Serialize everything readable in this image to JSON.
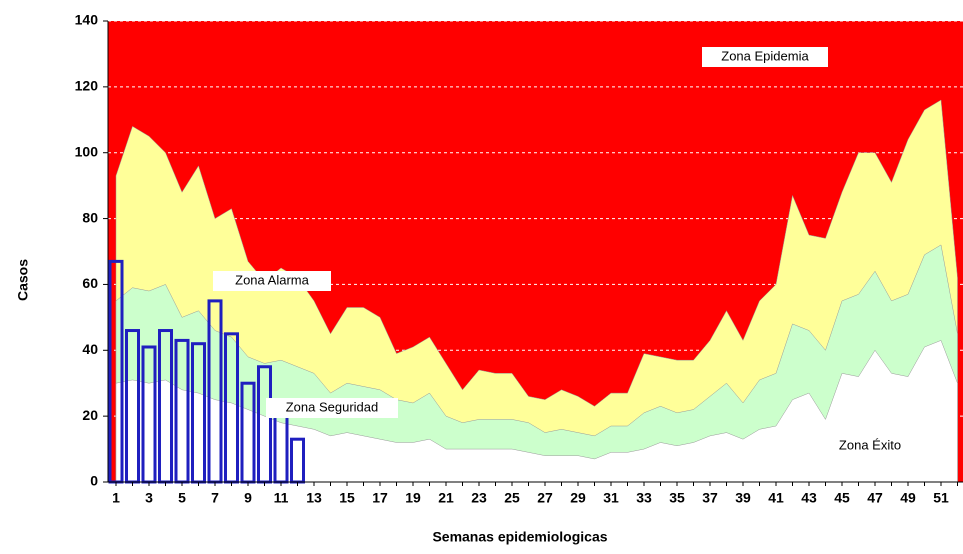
{
  "chart_data": {
    "type": "area",
    "ylabel": "Casos",
    "xlabel": "Semanas epidemiologicas",
    "categories": [
      1,
      null,
      3,
      null,
      5,
      null,
      7,
      null,
      9,
      null,
      11,
      null,
      13,
      null,
      15,
      null,
      17,
      null,
      19,
      null,
      21,
      null,
      23,
      null,
      25,
      null,
      27,
      null,
      29,
      null,
      31,
      null,
      33,
      null,
      35,
      null,
      37,
      null,
      39,
      null,
      41,
      null,
      43,
      null,
      45,
      null,
      47,
      null,
      49,
      null,
      51,
      null
    ],
    "ylim": [
      0,
      140
    ],
    "yticks": [
      0,
      20,
      40,
      60,
      80,
      100,
      120,
      140
    ],
    "grid": true,
    "epidemic_zone": {
      "name": "Zona Epidemia",
      "color": "#ff0000"
    },
    "series": [
      {
        "name": "Zona Alarma",
        "color": "#ffff99",
        "values": [
          93,
          108,
          105,
          100,
          88,
          96,
          80,
          83,
          67,
          61,
          65,
          62,
          55,
          45,
          53,
          53,
          50,
          39,
          41,
          44,
          36,
          28,
          34,
          33,
          33,
          26,
          25,
          28,
          26,
          23,
          27,
          27,
          39,
          38,
          37,
          37,
          43,
          52,
          43,
          55,
          60,
          87,
          75,
          74,
          88,
          100,
          100,
          91,
          104,
          113,
          116,
          62
        ]
      },
      {
        "name": "Zona Seguridad",
        "color": "#ccffcc",
        "values": [
          55,
          59,
          58,
          60,
          50,
          52,
          46,
          44,
          38,
          36,
          37,
          35,
          33,
          27,
          30,
          29,
          28,
          25,
          24,
          27,
          20,
          18,
          19,
          19,
          19,
          18,
          15,
          16,
          15,
          14,
          17,
          17,
          21,
          23,
          21,
          22,
          26,
          30,
          24,
          31,
          33,
          48,
          46,
          40,
          55,
          57,
          64,
          55,
          57,
          69,
          72,
          45
        ]
      },
      {
        "name": "Zona Éxito",
        "color": "#ffffff",
        "values": [
          30,
          31,
          30,
          31,
          28,
          27,
          25,
          24,
          22,
          20,
          18,
          17,
          16,
          14,
          15,
          14,
          13,
          12,
          12,
          13,
          10,
          10,
          10,
          10,
          10,
          9,
          8,
          8,
          8,
          7,
          9,
          9,
          10,
          12,
          11,
          12,
          14,
          15,
          13,
          16,
          17,
          25,
          27,
          19,
          33,
          32,
          40,
          33,
          32,
          41,
          43,
          30
        ]
      }
    ],
    "cases": {
      "type": "bar",
      "color": "#1f1fbf",
      "values": [
        67,
        46,
        41,
        46,
        43,
        42,
        55,
        45,
        30,
        35,
        20,
        13
      ]
    }
  }
}
